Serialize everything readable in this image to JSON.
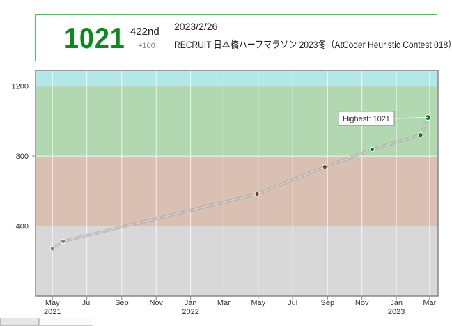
{
  "status": {
    "rating": "1021",
    "rank": "422nd",
    "diff": "+100",
    "date": "2023/2/26",
    "contest": "RECRUIT 日本橋ハーフマラソン 2023冬（AtCoder Heuristic Contest 018）",
    "rating_color": "#0b8a1d"
  },
  "chart_data": {
    "type": "line",
    "x_ticks": [
      {
        "date": "2021-05-01",
        "month": "May",
        "year": "2021"
      },
      {
        "date": "2021-07-01",
        "month": "Jul",
        "year": ""
      },
      {
        "date": "2021-09-01",
        "month": "Sep",
        "year": ""
      },
      {
        "date": "2021-11-01",
        "month": "Nov",
        "year": ""
      },
      {
        "date": "2022-01-01",
        "month": "Jan",
        "year": "2022"
      },
      {
        "date": "2022-03-01",
        "month": "Mar",
        "year": ""
      },
      {
        "date": "2022-05-01",
        "month": "May",
        "year": ""
      },
      {
        "date": "2022-07-01",
        "month": "Jul",
        "year": ""
      },
      {
        "date": "2022-09-01",
        "month": "Sep",
        "year": ""
      },
      {
        "date": "2022-11-01",
        "month": "Nov",
        "year": ""
      },
      {
        "date": "2023-01-01",
        "month": "Jan",
        "year": "2023"
      },
      {
        "date": "2023-03-01",
        "month": "Mar",
        "year": ""
      }
    ],
    "y_ticks": [
      400,
      800,
      1200
    ],
    "xlim": [
      "2021-04-01",
      "2023-03-16"
    ],
    "ylim": [
      0,
      1290
    ],
    "bands": [
      {
        "from": 0,
        "to": 400,
        "color": "#d8d8d8"
      },
      {
        "from": 400,
        "to": 800,
        "color": "#d9c0b3"
      },
      {
        "from": 800,
        "to": 1200,
        "color": "#b2d8b2"
      },
      {
        "from": 1200,
        "to": 1290,
        "color": "#b2e8e8"
      }
    ],
    "points": [
      {
        "date": "2021-05-01",
        "rating": 271,
        "color": "#808080"
      },
      {
        "date": "2021-05-20",
        "rating": 313,
        "color": "#808080"
      },
      {
        "date": "2022-04-29",
        "rating": 583,
        "color": "#804000"
      },
      {
        "date": "2022-08-27",
        "rating": 738,
        "color": "#804000"
      },
      {
        "date": "2022-11-19",
        "rating": 838,
        "color": "#008000"
      },
      {
        "date": "2023-02-13",
        "rating": 921,
        "color": "#008000"
      },
      {
        "date": "2023-02-26",
        "rating": 1021,
        "color": "#008000"
      }
    ],
    "highest_label": "Highest: 1021"
  }
}
